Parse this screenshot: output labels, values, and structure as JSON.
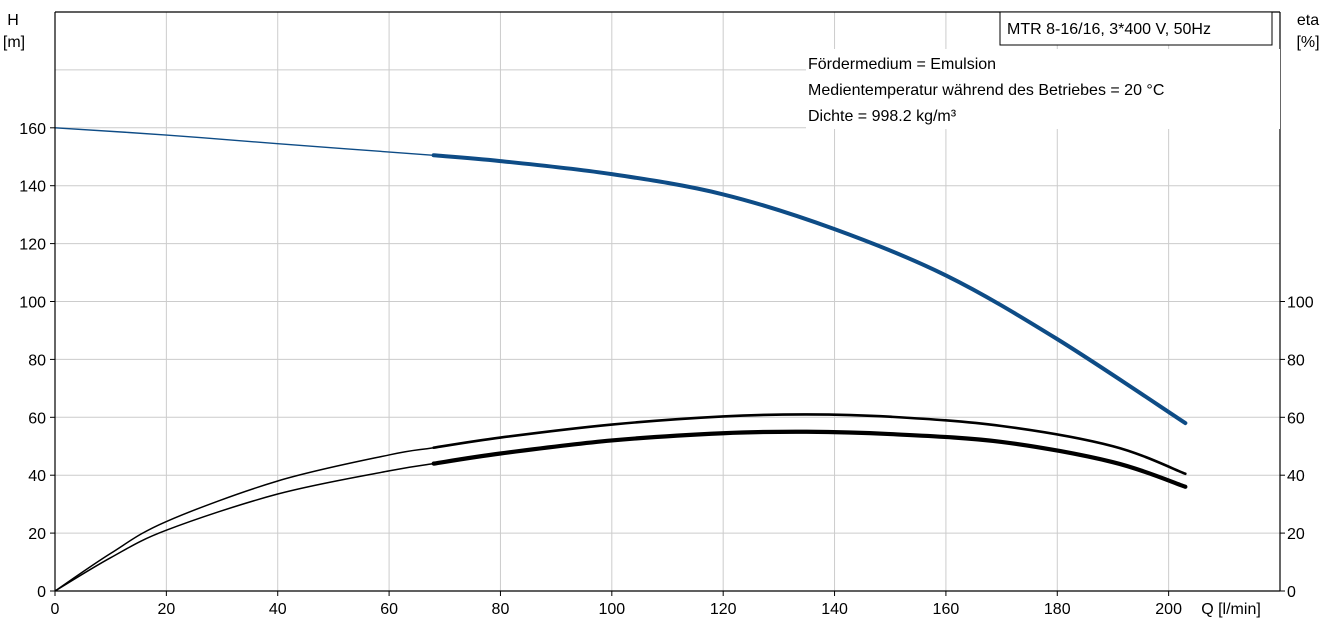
{
  "chart_data": {
    "type": "line",
    "model_label": "MTR 8-16/16, 3*400 V, 50Hz",
    "info_lines": [
      "Fördermedium = Emulsion",
      "Medientemperatur während des Betriebes = 20 °C",
      "Dichte = 998.2 kg/m³"
    ],
    "x_axis": {
      "label": "Q [l/min]",
      "range": [
        0,
        220
      ],
      "ticks": [
        0,
        20,
        40,
        60,
        80,
        100,
        120,
        140,
        160,
        180,
        200
      ]
    },
    "y_left": {
      "label_line1": "H",
      "label_line2": "[m]",
      "range": [
        0,
        200
      ],
      "ticks": [
        0,
        20,
        40,
        60,
        80,
        100,
        120,
        140,
        160
      ]
    },
    "y_right": {
      "label_line1": "eta",
      "label_line2": "[%]",
      "range": [
        0,
        200
      ],
      "ticks": [
        0,
        20,
        40,
        60,
        80,
        100
      ]
    },
    "grid": true,
    "series": [
      {
        "axis": "left",
        "color": "#0e4c86",
        "x": [
          0,
          20,
          40,
          68,
          80,
          100,
          120,
          140,
          160,
          180,
          203
        ],
        "y": [
          160,
          157.5,
          154.5,
          150.5,
          148.5,
          144,
          137,
          125,
          109,
          87,
          58
        ],
        "bold_from_x": 68
      },
      {
        "axis": "right",
        "color": "#000000",
        "x": [
          0,
          10,
          20,
          40,
          60,
          68,
          80,
          100,
          120,
          135,
          150,
          170,
          190,
          203
        ],
        "y": [
          0,
          13,
          24,
          38,
          47,
          49.5,
          53,
          57.5,
          60.3,
          61,
          60.2,
          57,
          50,
          40.5
        ],
        "bold_from_x": 1000
      },
      {
        "axis": "right",
        "color": "#000000",
        "x": [
          0,
          10,
          20,
          40,
          60,
          68,
          80,
          100,
          120,
          135,
          150,
          170,
          190,
          203
        ],
        "y": [
          0,
          11.5,
          21,
          33.5,
          41.5,
          44,
          47.5,
          52,
          54.5,
          55,
          54.2,
          51.5,
          44.5,
          36
        ],
        "bold_from_x": 68
      }
    ]
  }
}
